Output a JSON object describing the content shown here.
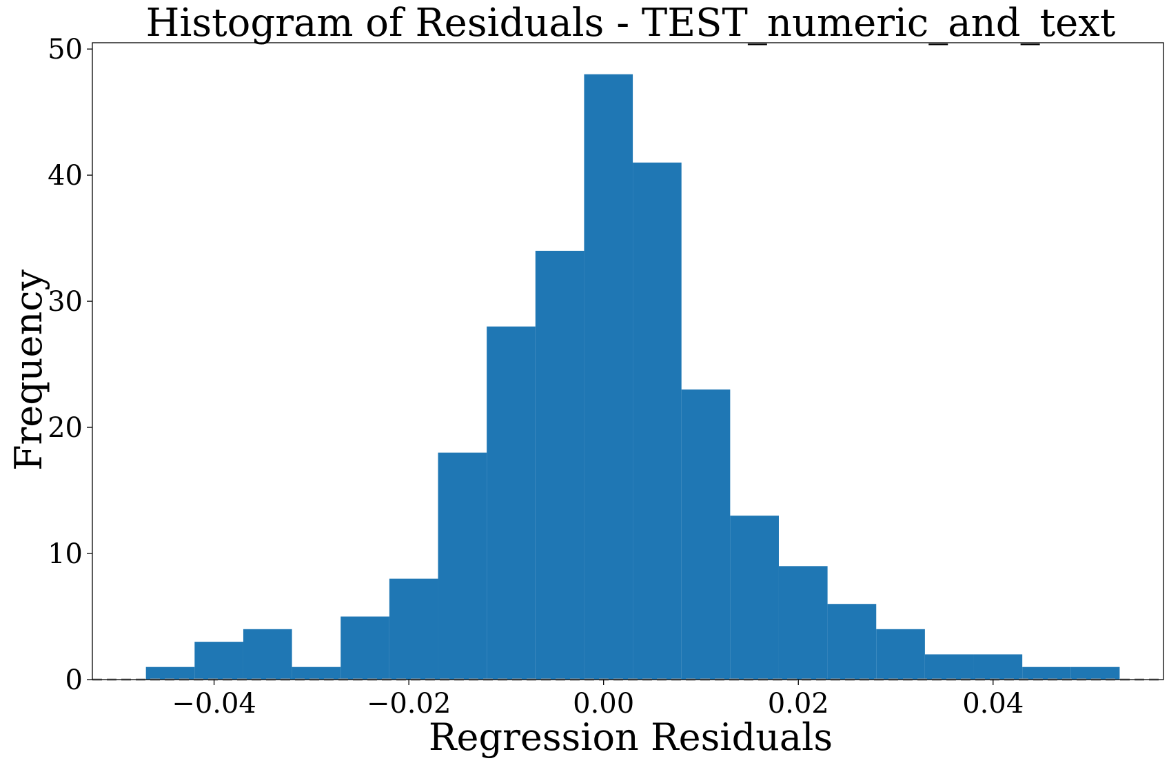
{
  "chart_data": {
    "type": "bar",
    "title": "Histogram of Residuals - TEST_numeric_and_text",
    "xlabel": "Regression Residuals",
    "ylabel": "Frequency",
    "xlim": [
      -0.0525,
      0.0575
    ],
    "ylim": [
      0,
      50.5
    ],
    "x_ticks": [
      -0.04,
      -0.02,
      0.0,
      0.02,
      0.04
    ],
    "x_tick_labels": [
      "−0.04",
      "−0.02",
      "0.00",
      "0.02",
      "0.04"
    ],
    "y_ticks": [
      0,
      10,
      20,
      30,
      40,
      50
    ],
    "y_tick_labels": [
      "0",
      "10",
      "20",
      "30",
      "40",
      "50"
    ],
    "bin_start": -0.047,
    "bin_width": 0.005,
    "values": [
      1,
      3,
      4,
      1,
      5,
      8,
      18,
      28,
      34,
      48,
      41,
      23,
      13,
      9,
      6,
      4,
      2,
      2,
      1,
      1
    ],
    "bar_color": "#1f77b4",
    "reference_line": {
      "y": 0,
      "style": "dashed",
      "color": "#999999"
    },
    "grid": false,
    "legend": "none"
  }
}
